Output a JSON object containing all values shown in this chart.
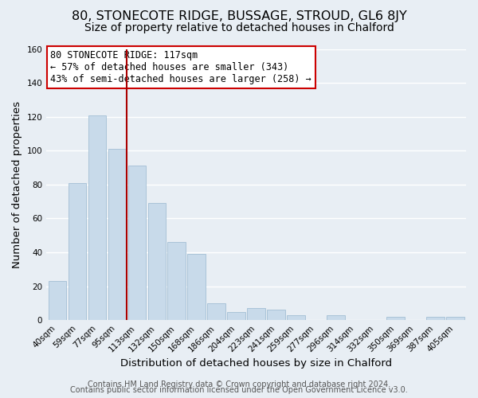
{
  "title": "80, STONECOTE RIDGE, BUSSAGE, STROUD, GL6 8JY",
  "subtitle": "Size of property relative to detached houses in Chalford",
  "xlabel": "Distribution of detached houses by size in Chalford",
  "ylabel": "Number of detached properties",
  "bar_labels": [
    "40sqm",
    "59sqm",
    "77sqm",
    "95sqm",
    "113sqm",
    "132sqm",
    "150sqm",
    "168sqm",
    "186sqm",
    "204sqm",
    "223sqm",
    "241sqm",
    "259sqm",
    "277sqm",
    "296sqm",
    "314sqm",
    "332sqm",
    "350sqm",
    "369sqm",
    "387sqm",
    "405sqm"
  ],
  "bar_values": [
    23,
    81,
    121,
    101,
    91,
    69,
    46,
    39,
    10,
    5,
    7,
    6,
    3,
    0,
    3,
    0,
    0,
    2,
    0,
    2,
    2
  ],
  "bar_color": "#c8daea",
  "bar_edge_color": "#aac4d8",
  "vline_x": 3.5,
  "vline_color": "#aa0000",
  "ylim": [
    0,
    160
  ],
  "yticks": [
    0,
    20,
    40,
    60,
    80,
    100,
    120,
    140,
    160
  ],
  "annotation_text": "80 STONECOTE RIDGE: 117sqm\n← 57% of detached houses are smaller (343)\n43% of semi-detached houses are larger (258) →",
  "annotation_box_color": "#ffffff",
  "annotation_box_edge": "#cc0000",
  "footer_line1": "Contains HM Land Registry data © Crown copyright and database right 2024.",
  "footer_line2": "Contains public sector information licensed under the Open Government Licence v3.0.",
  "background_color": "#e8eef4",
  "plot_bg_color": "#e8eef4",
  "grid_color": "#ffffff",
  "title_fontsize": 11.5,
  "subtitle_fontsize": 10,
  "axis_label_fontsize": 9.5,
  "tick_fontsize": 7.5,
  "annotation_fontsize": 8.5,
  "footer_fontsize": 7
}
